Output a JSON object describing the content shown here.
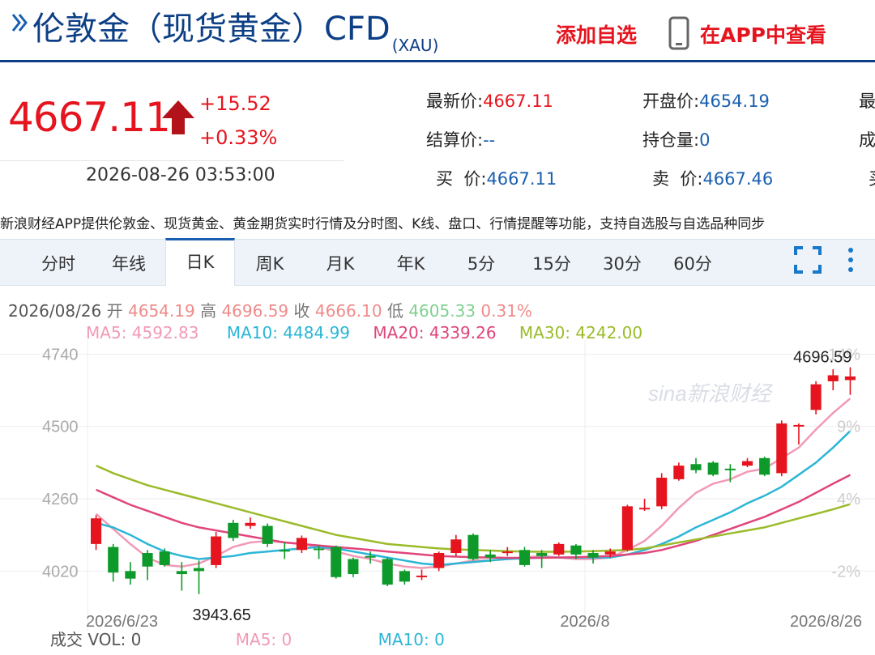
{
  "header": {
    "title": "伦敦金（现货黄金）CFD",
    "title_sub": "(XAU)",
    "add_fav_label": "添加自选",
    "view_app_label": "在APP中查看"
  },
  "quote": {
    "price": "4667.11",
    "change": "+15.52",
    "change_pct": "+0.33%",
    "timestamp": "2026-08-26 03:53:00",
    "fields": [
      {
        "label": "最新价:",
        "value": "4667.11"
      },
      {
        "label": "开盘价:",
        "value": "4654.19"
      },
      {
        "label": "最",
        "value": ""
      },
      {
        "label": "结算价:",
        "value": "--"
      },
      {
        "label": "持仓量:",
        "value": "0"
      },
      {
        "label": "成",
        "value": ""
      },
      {
        "label": "买  价:",
        "value": "4667.11"
      },
      {
        "label": "卖  价:",
        "value": "4667.46"
      },
      {
        "label": "买",
        "value": ""
      }
    ],
    "colors": {
      "up": "#e6141e",
      "down": "#0d9a2a",
      "blue": "#1a5fb0"
    }
  },
  "notice": "新浪财经APP提供伦敦金、现货黄金、黄金期货实时行情及分时图、K线、盘口、行情提醒等功能，支持自选股与自选品种同步",
  "tabs": [
    {
      "label": "分时"
    },
    {
      "label": "年线"
    },
    {
      "label": "日K"
    },
    {
      "label": "周K"
    },
    {
      "label": "月K"
    },
    {
      "label": "年K"
    },
    {
      "label": "5分"
    },
    {
      "label": "15分"
    },
    {
      "label": "30分"
    },
    {
      "label": "60分"
    }
  ],
  "active_tab": "日K",
  "ohlc": {
    "date": "2026/08/26",
    "open_label": "开",
    "open": "4654.19",
    "high_label": "高",
    "high": "4696.59",
    "close_label": "收",
    "close": "4666.10",
    "low_label": "低",
    "low": "4605.33",
    "pct": "0.31%"
  },
  "ma": {
    "ma5": "MA5: 4592.83",
    "ma10": "MA10: 4484.99",
    "ma20": "MA20: 4339.26",
    "ma30": "MA30: 4242.00",
    "colors": {
      "ma5": "#f29ab5",
      "ma10": "#2bb6d6",
      "ma20": "#e0457b",
      "ma30": "#9bbb2a"
    }
  },
  "volume": {
    "label": "成交",
    "vol": "VOL: 0",
    "ma5": "MA5: 0",
    "ma10": "MA10: 0"
  },
  "chart_data": {
    "type": "candlestick",
    "y_ticks": [
      "4740",
      "4500",
      "4260",
      "4020"
    ],
    "right_ticks": [
      "14%",
      "9%",
      "4%",
      "-2%"
    ],
    "x_labels": [
      "2026/6/23",
      "2026/8",
      "2026/8/26"
    ],
    "max_label": "4696.59",
    "min_label": "3943.65",
    "ylim": [
      3900,
      4760
    ],
    "watermark": "sina新浪财经",
    "candles": [
      {
        "o": 4110,
        "c": 4195,
        "h": 4205,
        "l": 4090
      },
      {
        "o": 4100,
        "c": 4015,
        "h": 4110,
        "l": 3985
      },
      {
        "o": 4020,
        "c": 3995,
        "h": 4050,
        "l": 3975
      },
      {
        "o": 4080,
        "c": 4035,
        "h": 4090,
        "l": 3990
      },
      {
        "o": 4085,
        "c": 4040,
        "h": 4095,
        "l": 4035
      },
      {
        "o": 4020,
        "c": 4010,
        "h": 4050,
        "l": 3955
      },
      {
        "o": 4030,
        "c": 4020,
        "h": 4055,
        "l": 3943.65
      },
      {
        "o": 4040,
        "c": 4135,
        "h": 4150,
        "l": 4030
      },
      {
        "o": 4180,
        "c": 4130,
        "h": 4190,
        "l": 4120
      },
      {
        "o": 4170,
        "c": 4180,
        "h": 4198,
        "l": 4160
      },
      {
        "o": 4170,
        "c": 4110,
        "h": 4178,
        "l": 4100
      },
      {
        "o": 4090,
        "c": 4085,
        "h": 4115,
        "l": 4060
      },
      {
        "o": 4090,
        "c": 4130,
        "h": 4138,
        "l": 4080
      },
      {
        "o": 4095,
        "c": 4090,
        "h": 4105,
        "l": 4060
      },
      {
        "o": 4100,
        "c": 4000,
        "h": 4105,
        "l": 3995
      },
      {
        "o": 4060,
        "c": 4010,
        "h": 4065,
        "l": 4000
      },
      {
        "o": 4070,
        "c": 4065,
        "h": 4085,
        "l": 4045
      },
      {
        "o": 4060,
        "c": 3975,
        "h": 4065,
        "l": 3970
      },
      {
        "o": 4020,
        "c": 3985,
        "h": 4025,
        "l": 3975
      },
      {
        "o": 4000,
        "c": 4005,
        "h": 4025,
        "l": 3990
      },
      {
        "o": 4030,
        "c": 4080,
        "h": 4085,
        "l": 4020
      },
      {
        "o": 4080,
        "c": 4125,
        "h": 4140,
        "l": 4070
      },
      {
        "o": 4140,
        "c": 4060,
        "h": 4145,
        "l": 4055
      },
      {
        "o": 4075,
        "c": 4065,
        "h": 4090,
        "l": 4050
      },
      {
        "o": 4080,
        "c": 4085,
        "h": 4100,
        "l": 4070
      },
      {
        "o": 4090,
        "c": 4040,
        "h": 4100,
        "l": 4035
      },
      {
        "o": 4080,
        "c": 4070,
        "h": 4090,
        "l": 4030
      },
      {
        "o": 4075,
        "c": 4110,
        "h": 4115,
        "l": 4070
      },
      {
        "o": 4105,
        "c": 4075,
        "h": 4110,
        "l": 4060
      },
      {
        "o": 4080,
        "c": 4065,
        "h": 4090,
        "l": 4045
      },
      {
        "o": 4075,
        "c": 4085,
        "h": 4095,
        "l": 4065
      },
      {
        "o": 4090,
        "c": 4235,
        "h": 4240,
        "l": 4085
      },
      {
        "o": 4230,
        "c": 4230,
        "h": 4260,
        "l": 4220
      },
      {
        "o": 4235,
        "c": 4330,
        "h": 4345,
        "l": 4225
      },
      {
        "o": 4325,
        "c": 4370,
        "h": 4380,
        "l": 4320
      },
      {
        "o": 4375,
        "c": 4355,
        "h": 4395,
        "l": 4345
      },
      {
        "o": 4380,
        "c": 4340,
        "h": 4385,
        "l": 4335
      },
      {
        "o": 4360,
        "c": 4355,
        "h": 4375,
        "l": 4315
      },
      {
        "o": 4370,
        "c": 4385,
        "h": 4395,
        "l": 4365
      },
      {
        "o": 4395,
        "c": 4340,
        "h": 4400,
        "l": 4335
      },
      {
        "o": 4345,
        "c": 4510,
        "h": 4520,
        "l": 4335
      },
      {
        "o": 4500,
        "c": 4505,
        "h": 4510,
        "l": 4440
      },
      {
        "o": 4555,
        "c": 4640,
        "h": 4650,
        "l": 4540
      },
      {
        "o": 4650,
        "c": 4670,
        "h": 4690,
        "l": 4620
      },
      {
        "o": 4654,
        "c": 4666,
        "h": 4696.59,
        "l": 4605
      }
    ],
    "series": [
      {
        "name": "MA5",
        "color_key": "ma5",
        "values": [
          4210,
          4160,
          4110,
          4065,
          4040,
          4035,
          4045,
          4070,
          4100,
          4115,
          4120,
          4115,
          4110,
          4100,
          4085,
          4070,
          4060,
          4045,
          4035,
          4030,
          4035,
          4045,
          4055,
          4055,
          4060,
          4065,
          4070,
          4065,
          4060,
          4060,
          4065,
          4090,
          4120,
          4170,
          4230,
          4280,
          4310,
          4325,
          4350,
          4360,
          4395,
          4430,
          4490,
          4545,
          4592.83
        ]
      },
      {
        "name": "MA10",
        "color_key": "ma10",
        "values": [
          4180,
          4165,
          4140,
          4110,
          4085,
          4070,
          4060,
          4065,
          4070,
          4080,
          4085,
          4090,
          4095,
          4100,
          4095,
          4085,
          4075,
          4065,
          4055,
          4045,
          4040,
          4045,
          4050,
          4055,
          4060,
          4062,
          4065,
          4065,
          4065,
          4065,
          4065,
          4075,
          4090,
          4110,
          4135,
          4165,
          4190,
          4215,
          4245,
          4270,
          4300,
          4340,
          4380,
          4430,
          4484.99
        ]
      },
      {
        "name": "MA20",
        "color_key": "ma20",
        "values": [
          4290,
          4265,
          4240,
          4220,
          4200,
          4180,
          4165,
          4155,
          4145,
          4135,
          4125,
          4115,
          4110,
          4105,
          4100,
          4095,
          4090,
          4085,
          4080,
          4075,
          4070,
          4068,
          4066,
          4065,
          4064,
          4064,
          4064,
          4065,
          4066,
          4068,
          4070,
          4075,
          4080,
          4090,
          4105,
          4120,
          4140,
          4160,
          4180,
          4200,
          4225,
          4250,
          4280,
          4310,
          4339.26
        ]
      },
      {
        "name": "MA30",
        "color_key": "ma30",
        "values": [
          4370,
          4345,
          4325,
          4305,
          4290,
          4275,
          4260,
          4245,
          4230,
          4215,
          4200,
          4185,
          4170,
          4155,
          4140,
          4130,
          4120,
          4110,
          4105,
          4100,
          4095,
          4092,
          4090,
          4088,
          4086,
          4085,
          4084,
          4084,
          4085,
          4086,
          4088,
          4090,
          4095,
          4105,
          4115,
          4125,
          4135,
          4145,
          4155,
          4165,
          4180,
          4195,
          4210,
          4225,
          4242.0
        ]
      }
    ]
  }
}
